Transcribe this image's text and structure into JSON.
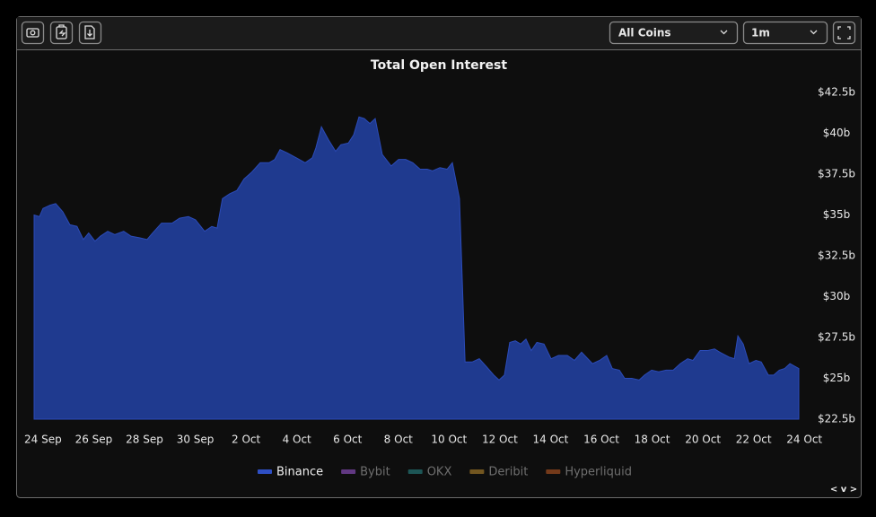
{
  "toolbar": {
    "coin_select": "All Coins",
    "interval_select": "1m"
  },
  "footer_nav": "< v >",
  "chart_data": {
    "type": "area",
    "title": "Total Open Interest",
    "x": [
      -0.35,
      -0.14,
      0,
      0.28,
      0.5,
      0.78,
      1.06,
      1.34,
      1.59,
      1.8,
      2.05,
      2.26,
      2.55,
      2.83,
      3.18,
      3.47,
      3.82,
      4.1,
      4.32,
      4.67,
      5.09,
      5.38,
      5.73,
      6.01,
      6.37,
      6.65,
      6.86,
      7.07,
      7.36,
      7.64,
      7.92,
      8.21,
      8.56,
      8.91,
      9.13,
      9.34,
      9.62,
      9.98,
      10.33,
      10.61,
      10.75,
      10.97,
      11.25,
      11.53,
      11.74,
      12.03,
      12.24,
      12.45,
      12.66,
      12.88,
      13.09,
      13.37,
      13.72,
      14.01,
      14.29,
      14.57,
      14.86,
      15.14,
      15.35,
      15.64,
      15.92,
      16.13,
      16.41,
      16.63,
      16.91,
      17.19,
      17.48,
      17.76,
      17.97,
      18.18,
      18.39,
      18.61,
      18.82,
      19.03,
      19.24,
      19.46,
      19.74,
      20.02,
      20.31,
      20.66,
      20.94,
      21.22,
      21.65,
      21.93,
      22.21,
      22.43,
      22.71,
      22.92,
      23.2,
      23.49,
      23.7,
      23.98,
      24.26,
      24.55,
      24.83,
      25.11,
      25.4,
      25.61,
      25.89,
      26.18,
      26.46,
      26.67,
      27.03,
      27.24,
      27.38,
      27.59,
      27.82,
      28.09,
      28.3,
      28.58,
      28.79,
      29.01,
      29.22,
      29.43,
      29.78
    ],
    "series": [
      {
        "name": "Binance",
        "color": "#1f3a8f",
        "values": [
          35.0,
          34.9,
          35.4,
          35.6,
          35.7,
          35.2,
          34.4,
          34.3,
          33.5,
          33.9,
          33.4,
          33.7,
          34.0,
          33.8,
          34.0,
          33.7,
          33.6,
          33.5,
          33.9,
          34.5,
          34.5,
          34.8,
          34.9,
          34.7,
          34.0,
          34.3,
          34.2,
          36.0,
          36.3,
          36.5,
          37.2,
          37.6,
          38.2,
          38.2,
          38.4,
          39.0,
          38.8,
          38.5,
          38.2,
          38.5,
          39.1,
          40.4,
          39.6,
          38.9,
          39.3,
          39.4,
          39.9,
          41.0,
          40.9,
          40.6,
          40.9,
          38.7,
          38.0,
          38.4,
          38.4,
          38.2,
          37.8,
          37.8,
          37.7,
          37.9,
          37.8,
          38.2,
          36.0,
          26.0,
          26.0,
          26.2,
          25.7,
          25.2,
          24.9,
          25.2,
          27.2,
          27.3,
          27.1,
          27.4,
          26.7,
          27.2,
          27.1,
          26.2,
          26.4,
          26.4,
          26.1,
          26.6,
          25.9,
          26.1,
          26.4,
          25.6,
          25.5,
          25.0,
          25.0,
          24.9,
          25.2,
          25.5,
          25.4,
          25.5,
          25.5,
          25.9,
          26.2,
          26.1,
          26.7,
          26.7,
          26.8,
          26.6,
          26.3,
          26.2,
          27.6,
          27.1,
          25.9,
          26.1,
          26.0,
          25.2,
          25.2,
          25.5,
          25.6,
          25.9,
          25.6
        ]
      },
      {
        "name": "Bybit",
        "color": "#6a3d8f",
        "hidden": true
      },
      {
        "name": "OKX",
        "color": "#1f5e5e",
        "hidden": true
      },
      {
        "name": "Deribit",
        "color": "#7d5e22",
        "hidden": true
      },
      {
        "name": "Hyperliquid",
        "color": "#7f3f1c",
        "hidden": true
      }
    ],
    "xlim": [
      -0.35,
      29.78
    ],
    "xticks": [
      {
        "value": 0,
        "label": "24 Sep"
      },
      {
        "value": 2,
        "label": "26 Sep"
      },
      {
        "value": 4,
        "label": "28 Sep"
      },
      {
        "value": 6,
        "label": "30 Sep"
      },
      {
        "value": 8,
        "label": "2 Oct"
      },
      {
        "value": 10,
        "label": "4 Oct"
      },
      {
        "value": 12,
        "label": "6 Oct"
      },
      {
        "value": 14,
        "label": "8 Oct"
      },
      {
        "value": 16,
        "label": "10 Oct"
      },
      {
        "value": 18,
        "label": "12 Oct"
      },
      {
        "value": 20,
        "label": "14 Oct"
      },
      {
        "value": 22,
        "label": "16 Oct"
      },
      {
        "value": 24,
        "label": "18 Oct"
      },
      {
        "value": 26,
        "label": "20 Oct"
      },
      {
        "value": 28,
        "label": "22 Oct"
      },
      {
        "value": 30,
        "label": "24 Oct"
      }
    ],
    "ylim": [
      22.5,
      43.5
    ],
    "yticks": [
      {
        "value": 22.5,
        "label": "$22.5b"
      },
      {
        "value": 25,
        "label": "$25b"
      },
      {
        "value": 27.5,
        "label": "$27.5b"
      },
      {
        "value": 30,
        "label": "$30b"
      },
      {
        "value": 32.5,
        "label": "$32.5b"
      },
      {
        "value": 35,
        "label": "$35b"
      },
      {
        "value": 37.5,
        "label": "$37.5b"
      },
      {
        "value": 40,
        "label": "$40b"
      },
      {
        "value": 42.5,
        "label": "$42.5b"
      }
    ],
    "grid": false,
    "legend": "bottom"
  }
}
